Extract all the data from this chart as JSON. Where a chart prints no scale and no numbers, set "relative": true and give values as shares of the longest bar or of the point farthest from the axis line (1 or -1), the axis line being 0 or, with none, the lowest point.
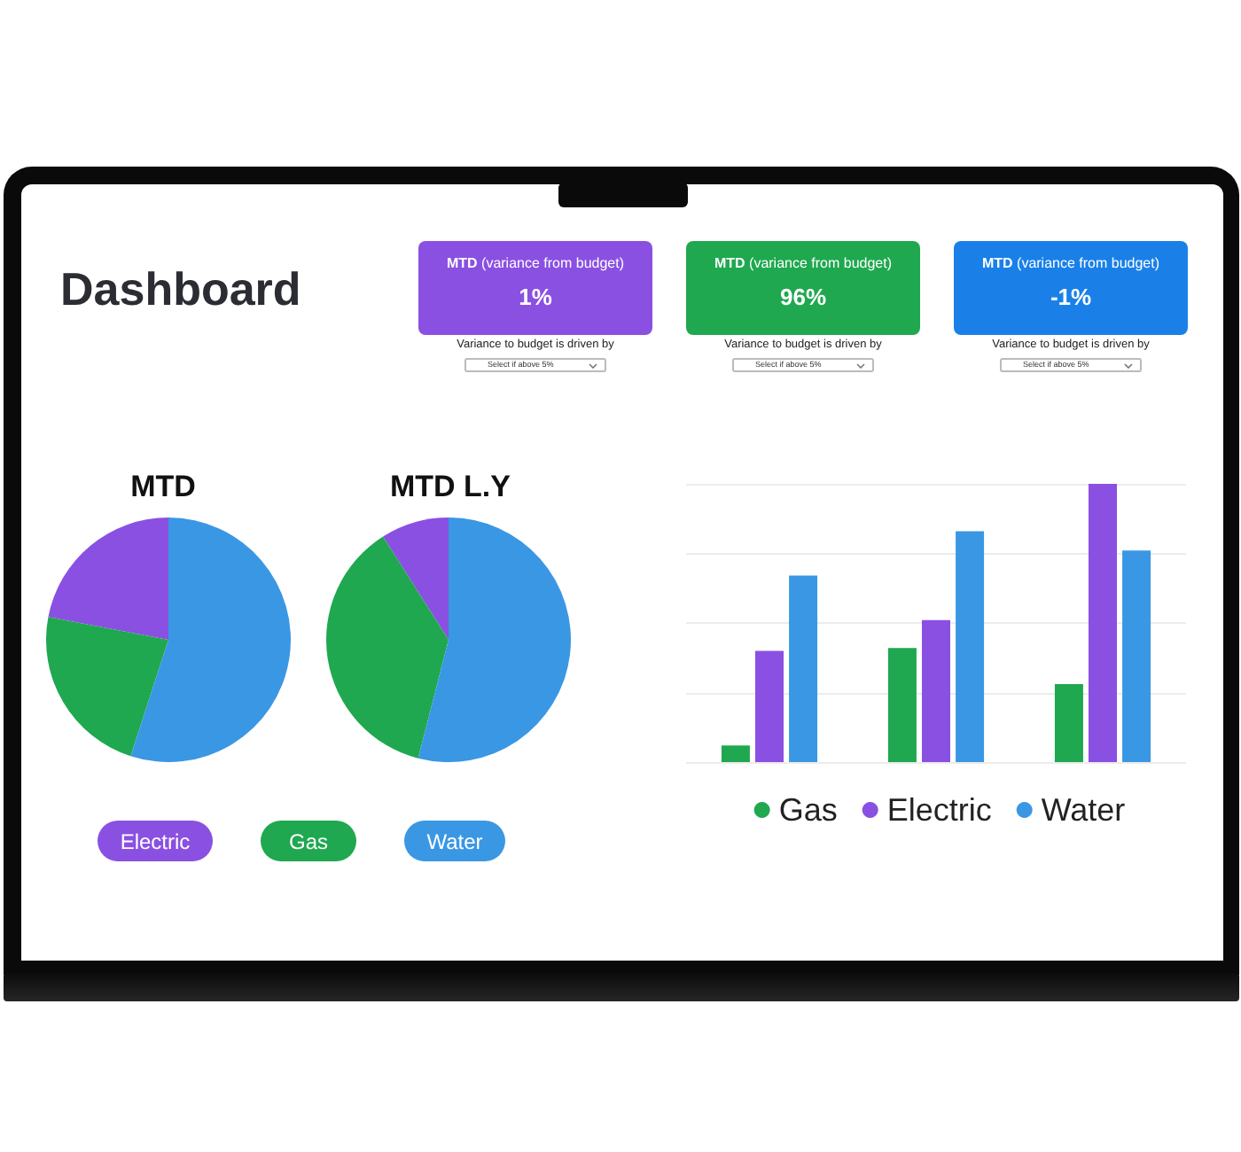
{
  "chart_data": [
    {
      "type": "other",
      "title": "Dashboard"
    },
    {
      "type": "other",
      "title": "MTD (variance from budget)",
      "color": "#8a50e2",
      "annotations": [
        "1%",
        "Variance to budget is driven by",
        "Select if above 5%"
      ]
    },
    {
      "type": "other",
      "title": "MTD (variance from budget)",
      "color": "#1fa84f",
      "annotations": [
        "96%",
        "Variance to budget is driven by",
        "Select if above 5%"
      ]
    },
    {
      "type": "other",
      "title": "MTD (variance from budget)",
      "color": "#1a80e8",
      "annotations": [
        "-1%",
        "Variance to budget is driven by",
        "Select if above 5%"
      ]
    },
    {
      "type": "pie",
      "categories": [
        "Electric",
        "Gas",
        "Water"
      ],
      "colors": [
        "#8a50e2",
        "#1fa84f",
        "#3a97e4"
      ],
      "legend": "bottom",
      "series": [
        {
          "name": "MTD",
          "values": [
            22,
            23,
            55
          ]
        },
        {
          "name": "MTD L.Y",
          "values": [
            9,
            37,
            54
          ]
        }
      ]
    },
    {
      "type": "bar",
      "categories": [
        null,
        null,
        null
      ],
      "relative": true,
      "grid": "y",
      "legend": "bottom",
      "series": [
        {
          "name": "Gas",
          "color": "#1fa84f",
          "values": [
            0.06,
            0.41,
            0.28
          ]
        },
        {
          "name": "Electric",
          "color": "#8a50e2",
          "values": [
            0.4,
            0.51,
            1
          ]
        },
        {
          "name": "Water",
          "color": "#3a97e4",
          "values": [
            0.67,
            0.83,
            0.76
          ]
        }
      ]
    }
  ]
}
